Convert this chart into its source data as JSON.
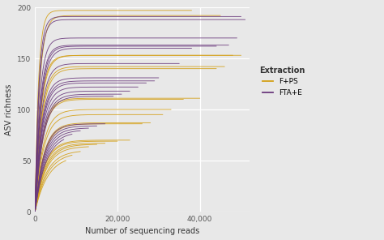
{
  "xlabel": "Number of sequencing reads",
  "ylabel": "ASV richness",
  "xlim": [
    0,
    52000
  ],
  "ylim": [
    0,
    200
  ],
  "xticks": [
    0,
    20000,
    40000
  ],
  "yticks": [
    0,
    50,
    100,
    150,
    200
  ],
  "background_color": "#E8E8E8",
  "grid_color": "#FFFFFF",
  "color_fps": "#D4A017",
  "color_ftae": "#6B3A7D",
  "legend_title": "Extraction",
  "legend_labels": [
    "F+PS",
    "FTA+E"
  ],
  "fps_curves": [
    {
      "x_max": 38000,
      "asymptote": 197,
      "rate": 0.0012
    },
    {
      "x_max": 45000,
      "asymptote": 192,
      "rate": 0.0009
    },
    {
      "x_max": 50000,
      "asymptote": 153,
      "rate": 0.00075
    },
    {
      "x_max": 48000,
      "asymptote": 153,
      "rate": 0.0007
    },
    {
      "x_max": 46000,
      "asymptote": 142,
      "rate": 0.00065
    },
    {
      "x_max": 44000,
      "asymptote": 140,
      "rate": 0.00062
    },
    {
      "x_max": 40000,
      "asymptote": 111,
      "rate": 0.00058
    },
    {
      "x_max": 36000,
      "asymptote": 110,
      "rate": 0.00055
    },
    {
      "x_max": 33000,
      "asymptote": 100,
      "rate": 0.00052
    },
    {
      "x_max": 31000,
      "asymptote": 95,
      "rate": 0.0005
    },
    {
      "x_max": 28000,
      "asymptote": 87,
      "rate": 0.00048
    },
    {
      "x_max": 26000,
      "asymptote": 86,
      "rate": 0.00046
    },
    {
      "x_max": 23000,
      "asymptote": 70,
      "rate": 0.00044
    },
    {
      "x_max": 20000,
      "asymptote": 69,
      "rate": 0.00043
    },
    {
      "x_max": 17000,
      "asymptote": 67,
      "rate": 0.00041
    },
    {
      "x_max": 15000,
      "asymptote": 66,
      "rate": 0.00039
    },
    {
      "x_max": 13000,
      "asymptote": 64,
      "rate": 0.00038
    },
    {
      "x_max": 11000,
      "asymptote": 60,
      "rate": 0.00036
    },
    {
      "x_max": 9000,
      "asymptote": 58,
      "rate": 0.00034
    },
    {
      "x_max": 7500,
      "asymptote": 55,
      "rate": 0.00032
    }
  ],
  "ftae_curves": [
    {
      "x_max": 50000,
      "asymptote": 191,
      "rate": 0.0011
    },
    {
      "x_max": 51000,
      "asymptote": 188,
      "rate": 0.001
    },
    {
      "x_max": 49000,
      "asymptote": 170,
      "rate": 0.00088
    },
    {
      "x_max": 47000,
      "asymptote": 163,
      "rate": 0.0008
    },
    {
      "x_max": 44000,
      "asymptote": 162,
      "rate": 0.00075
    },
    {
      "x_max": 38000,
      "asymptote": 160,
      "rate": 0.0007
    },
    {
      "x_max": 35000,
      "asymptote": 145,
      "rate": 0.00068
    },
    {
      "x_max": 30000,
      "asymptote": 131,
      "rate": 0.00064
    },
    {
      "x_max": 29000,
      "asymptote": 128,
      "rate": 0.00062
    },
    {
      "x_max": 27000,
      "asymptote": 126,
      "rate": 0.0006
    },
    {
      "x_max": 25000,
      "asymptote": 122,
      "rate": 0.00058
    },
    {
      "x_max": 23000,
      "asymptote": 118,
      "rate": 0.00055
    },
    {
      "x_max": 21000,
      "asymptote": 115,
      "rate": 0.00053
    },
    {
      "x_max": 19000,
      "asymptote": 113,
      "rate": 0.00051
    },
    {
      "x_max": 17000,
      "asymptote": 86,
      "rate": 0.00048
    },
    {
      "x_max": 15000,
      "asymptote": 84,
      "rate": 0.00046
    },
    {
      "x_max": 13000,
      "asymptote": 82,
      "rate": 0.00044
    },
    {
      "x_max": 11000,
      "asymptote": 80,
      "rate": 0.00042
    },
    {
      "x_max": 9000,
      "asymptote": 78,
      "rate": 0.0004
    },
    {
      "x_max": 7000,
      "asymptote": 76,
      "rate": 0.00038
    }
  ]
}
